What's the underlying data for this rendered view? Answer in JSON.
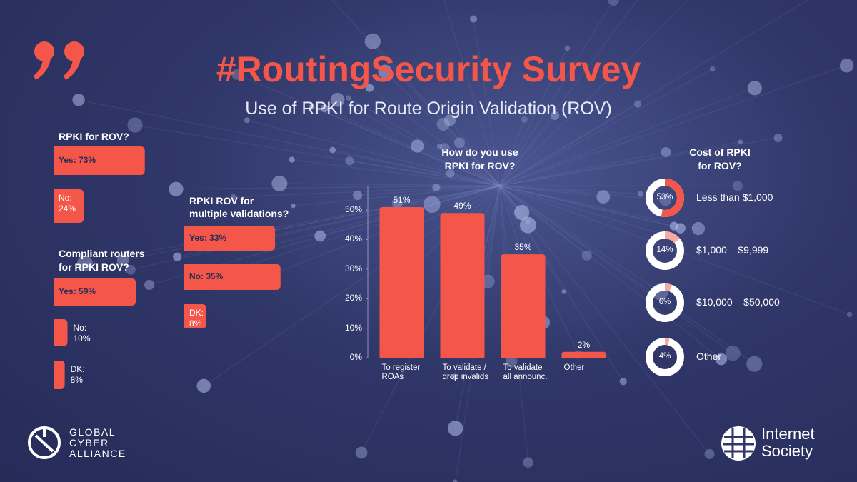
{
  "header": {
    "title": "#RoutingSecurity Survey",
    "subtitle": "Use of RPKI for Route Origin Validation (ROV)"
  },
  "chart_data": [
    {
      "type": "hbar",
      "title": [
        "RPKI for ROV?"
      ],
      "values": [
        73,
        24
      ],
      "value_labels": [
        "Yes: 73%",
        "No: 24%"
      ],
      "color": "#f4574a"
    },
    {
      "type": "hbar",
      "title": [
        "Compliant routers",
        "for RPKI ROV?"
      ],
      "values": [
        59,
        10,
        8
      ],
      "value_labels": [
        "Yes: 59%",
        "No: 10%",
        "DK: 8%"
      ],
      "color": "#f4574a"
    },
    {
      "type": "hbar",
      "title": [
        "RPKI ROV for",
        "multiple validations?"
      ],
      "values": [
        33,
        35,
        8
      ],
      "value_labels": [
        "Yes: 33%",
        "No: 35%",
        "DK: 8%"
      ],
      "color": "#f4574a"
    },
    {
      "type": "bar",
      "title": [
        "How do you use",
        "RPKI for ROV?"
      ],
      "categories": [
        "To register ROAs",
        "To validate / drop invalids",
        "To validate all announc.",
        "Other"
      ],
      "values": [
        51,
        49,
        35,
        2
      ],
      "value_labels": [
        "51%",
        "49%",
        "35%",
        "2%"
      ],
      "ylim": [
        0,
        58
      ],
      "yticks": [
        {
          "value": 0,
          "label": "0%"
        },
        {
          "value": 10,
          "label": "10%"
        },
        {
          "value": 20,
          "label": "20%"
        },
        {
          "value": 30,
          "label": "30%"
        },
        {
          "value": 40,
          "label": "40%"
        },
        {
          "value": 50,
          "label": "50%"
        }
      ],
      "color": "#f4574a"
    },
    {
      "type": "donut",
      "title": [
        "Cost of RPKI",
        "for ROV?"
      ],
      "categories": [
        "Less than $1,000",
        "$1,000 – $9,999",
        "$10,000 – $50,000",
        "Other"
      ],
      "values": [
        53,
        14,
        6,
        4
      ],
      "value_labels": [
        "53%",
        "14%",
        "6%",
        "4%"
      ],
      "colors": [
        "#f4574a",
        "#f6a9a0",
        "#f6a9a0",
        "#f6a9a0"
      ]
    }
  ],
  "logos": [
    [
      "GLOBAL",
      "CYBER",
      "ALLIANCE"
    ],
    [
      "Internet",
      "Society"
    ]
  ]
}
